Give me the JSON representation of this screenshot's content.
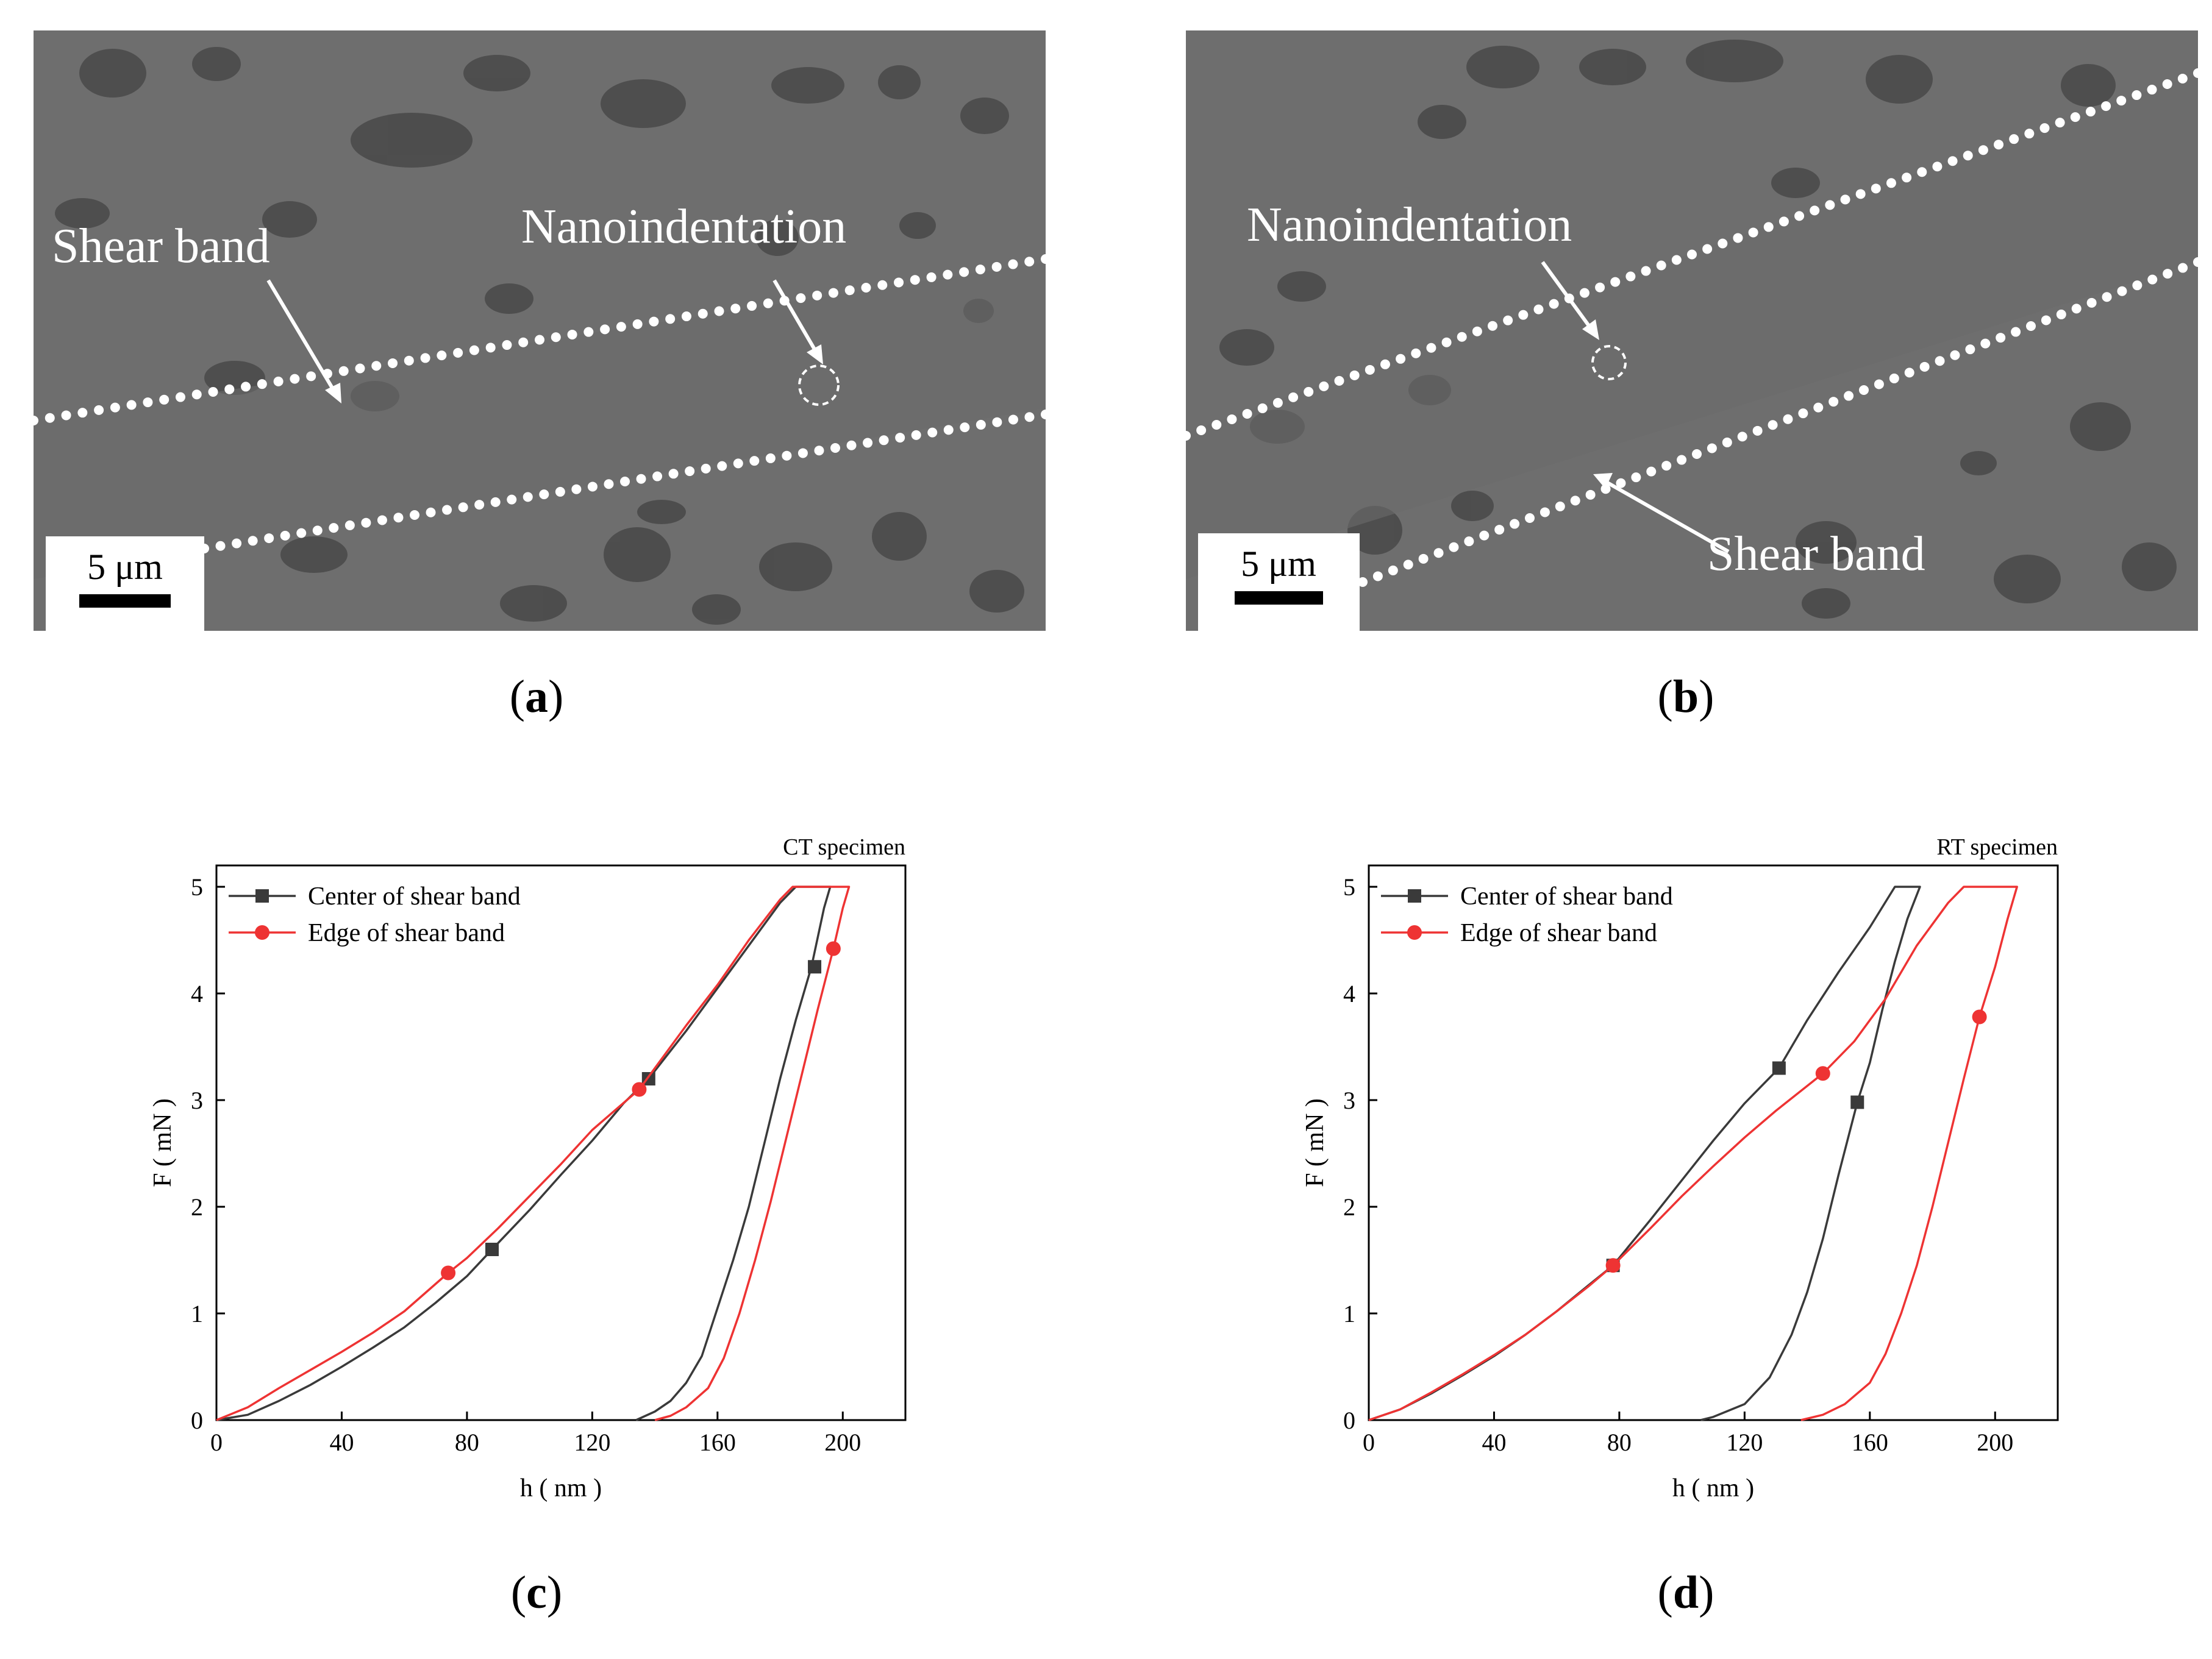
{
  "panels": {
    "a": {
      "label_open": "(",
      "label_letter": "a",
      "label_close": ")",
      "shear_band_label": "Shear band",
      "nanoindentation_label": "Nanoindentation",
      "scale_bar_label": "5 μm"
    },
    "b": {
      "label_open": "(",
      "label_letter": "b",
      "label_close": ")",
      "shear_band_label": "Shear band",
      "nanoindentation_label": "Nanoindentation",
      "scale_bar_label": "5 μm"
    },
    "c": {
      "label_open": "(",
      "label_letter": "c",
      "label_close": ")"
    },
    "d": {
      "label_open": "(",
      "label_letter": "d",
      "label_close": ")"
    }
  },
  "colors": {
    "center_series": "#3a3a3a",
    "edge_series": "#ee3333",
    "sem_background": "#6e6e6e",
    "sem_grain": "#4a4a4a",
    "dots": "#ffffff"
  },
  "chart_data": [
    {
      "type": "line",
      "title": "CT specimen",
      "xlabel": "h ( nm )",
      "ylabel": "F ( mN )",
      "xlim": [
        0,
        220
      ],
      "ylim": [
        0,
        5.2
      ],
      "xticks": [
        0,
        40,
        80,
        120,
        160,
        200
      ],
      "yticks": [
        0,
        1,
        2,
        3,
        4,
        5
      ],
      "legend_position": "top-left",
      "series": [
        {
          "name": "Center of shear band",
          "color": "#3a3a3a",
          "marker": "square",
          "points": [
            [
              0,
              0
            ],
            [
              10,
              0.05
            ],
            [
              20,
              0.18
            ],
            [
              30,
              0.33
            ],
            [
              40,
              0.5
            ],
            [
              50,
              0.68
            ],
            [
              60,
              0.87
            ],
            [
              70,
              1.1
            ],
            [
              80,
              1.35
            ],
            [
              88,
              1.6
            ],
            [
              100,
              1.97
            ],
            [
              110,
              2.3
            ],
            [
              120,
              2.62
            ],
            [
              130,
              2.97
            ],
            [
              138,
              3.2
            ],
            [
              150,
              3.65
            ],
            [
              160,
              4.05
            ],
            [
              170,
              4.45
            ],
            [
              180,
              4.85
            ],
            [
              185,
              5.0
            ],
            [
              196,
              5.0
            ],
            [
              194,
              4.8
            ],
            [
              190,
              4.25
            ],
            [
              185,
              3.75
            ],
            [
              180,
              3.2
            ],
            [
              175,
              2.6
            ],
            [
              170,
              2.0
            ],
            [
              165,
              1.5
            ],
            [
              160,
              1.05
            ],
            [
              155,
              0.6
            ],
            [
              150,
              0.35
            ],
            [
              145,
              0.18
            ],
            [
              140,
              0.08
            ],
            [
              134,
              0
            ]
          ],
          "marker_points": [
            [
              88,
              1.6
            ],
            [
              138,
              3.2
            ],
            [
              191,
              4.25
            ]
          ]
        },
        {
          "name": "Edge of shear band",
          "color": "#ee3333",
          "marker": "circle",
          "points": [
            [
              0,
              0
            ],
            [
              10,
              0.12
            ],
            [
              20,
              0.3
            ],
            [
              30,
              0.47
            ],
            [
              40,
              0.64
            ],
            [
              50,
              0.82
            ],
            [
              60,
              1.02
            ],
            [
              74,
              1.38
            ],
            [
              80,
              1.52
            ],
            [
              90,
              1.8
            ],
            [
              100,
              2.1
            ],
            [
              110,
              2.4
            ],
            [
              120,
              2.72
            ],
            [
              135,
              3.1
            ],
            [
              140,
              3.3
            ],
            [
              150,
              3.7
            ],
            [
              160,
              4.08
            ],
            [
              170,
              4.5
            ],
            [
              180,
              4.88
            ],
            [
              184,
              5.0
            ],
            [
              202,
              5.0
            ],
            [
              200,
              4.8
            ],
            [
              197,
              4.42
            ],
            [
              192,
              3.85
            ],
            [
              187,
              3.25
            ],
            [
              182,
              2.65
            ],
            [
              177,
              2.05
            ],
            [
              172,
              1.5
            ],
            [
              167,
              1.0
            ],
            [
              162,
              0.58
            ],
            [
              157,
              0.3
            ],
            [
              150,
              0.12
            ],
            [
              145,
              0.04
            ],
            [
              140,
              0
            ]
          ],
          "marker_points": [
            [
              74,
              1.38
            ],
            [
              135,
              3.1
            ],
            [
              197,
              4.42
            ]
          ]
        }
      ]
    },
    {
      "type": "line",
      "title": "RT specimen",
      "xlabel": "h ( nm )",
      "ylabel": "F ( mN )",
      "xlim": [
        0,
        220
      ],
      "ylim": [
        0,
        5.2
      ],
      "xticks": [
        0,
        40,
        80,
        120,
        160,
        200
      ],
      "yticks": [
        0,
        1,
        2,
        3,
        4,
        5
      ],
      "legend_position": "top-left",
      "series": [
        {
          "name": "Center of shear band",
          "color": "#3a3a3a",
          "marker": "square",
          "points": [
            [
              0,
              0
            ],
            [
              10,
              0.1
            ],
            [
              20,
              0.25
            ],
            [
              30,
              0.42
            ],
            [
              40,
              0.6
            ],
            [
              50,
              0.8
            ],
            [
              60,
              1.02
            ],
            [
              70,
              1.26
            ],
            [
              78,
              1.45
            ],
            [
              90,
              1.88
            ],
            [
              100,
              2.25
            ],
            [
              110,
              2.62
            ],
            [
              120,
              2.97
            ],
            [
              131,
              3.3
            ],
            [
              140,
              3.75
            ],
            [
              150,
              4.2
            ],
            [
              160,
              4.62
            ],
            [
              168,
              5.0
            ],
            [
              176,
              5.0
            ],
            [
              172,
              4.7
            ],
            [
              168,
              4.3
            ],
            [
              164,
              3.85
            ],
            [
              160,
              3.35
            ],
            [
              156,
              2.98
            ],
            [
              150,
              2.3
            ],
            [
              145,
              1.7
            ],
            [
              140,
              1.2
            ],
            [
              135,
              0.8
            ],
            [
              128,
              0.4
            ],
            [
              120,
              0.15
            ],
            [
              110,
              0.03
            ],
            [
              106,
              0
            ]
          ],
          "marker_points": [
            [
              78,
              1.45
            ],
            [
              131,
              3.3
            ],
            [
              156,
              2.98
            ]
          ]
        },
        {
          "name": "Edge of shear band",
          "color": "#ee3333",
          "marker": "circle",
          "points": [
            [
              0,
              0
            ],
            [
              10,
              0.1
            ],
            [
              20,
              0.26
            ],
            [
              30,
              0.43
            ],
            [
              40,
              0.61
            ],
            [
              50,
              0.8
            ],
            [
              60,
              1.02
            ],
            [
              70,
              1.25
            ],
            [
              78,
              1.45
            ],
            [
              90,
              1.8
            ],
            [
              100,
              2.1
            ],
            [
              110,
              2.38
            ],
            [
              120,
              2.65
            ],
            [
              130,
              2.9
            ],
            [
              145,
              3.25
            ],
            [
              155,
              3.55
            ],
            [
              165,
              3.95
            ],
            [
              175,
              4.45
            ],
            [
              185,
              4.85
            ],
            [
              190,
              5.0
            ],
            [
              207,
              5.0
            ],
            [
              204,
              4.7
            ],
            [
              200,
              4.25
            ],
            [
              195,
              3.78
            ],
            [
              190,
              3.2
            ],
            [
              185,
              2.6
            ],
            [
              180,
              2.0
            ],
            [
              175,
              1.45
            ],
            [
              170,
              1.0
            ],
            [
              165,
              0.62
            ],
            [
              160,
              0.35
            ],
            [
              152,
              0.15
            ],
            [
              145,
              0.05
            ],
            [
              138,
              0
            ]
          ],
          "marker_points": [
            [
              78,
              1.45
            ],
            [
              145,
              3.25
            ],
            [
              195,
              3.78
            ]
          ]
        }
      ]
    }
  ]
}
